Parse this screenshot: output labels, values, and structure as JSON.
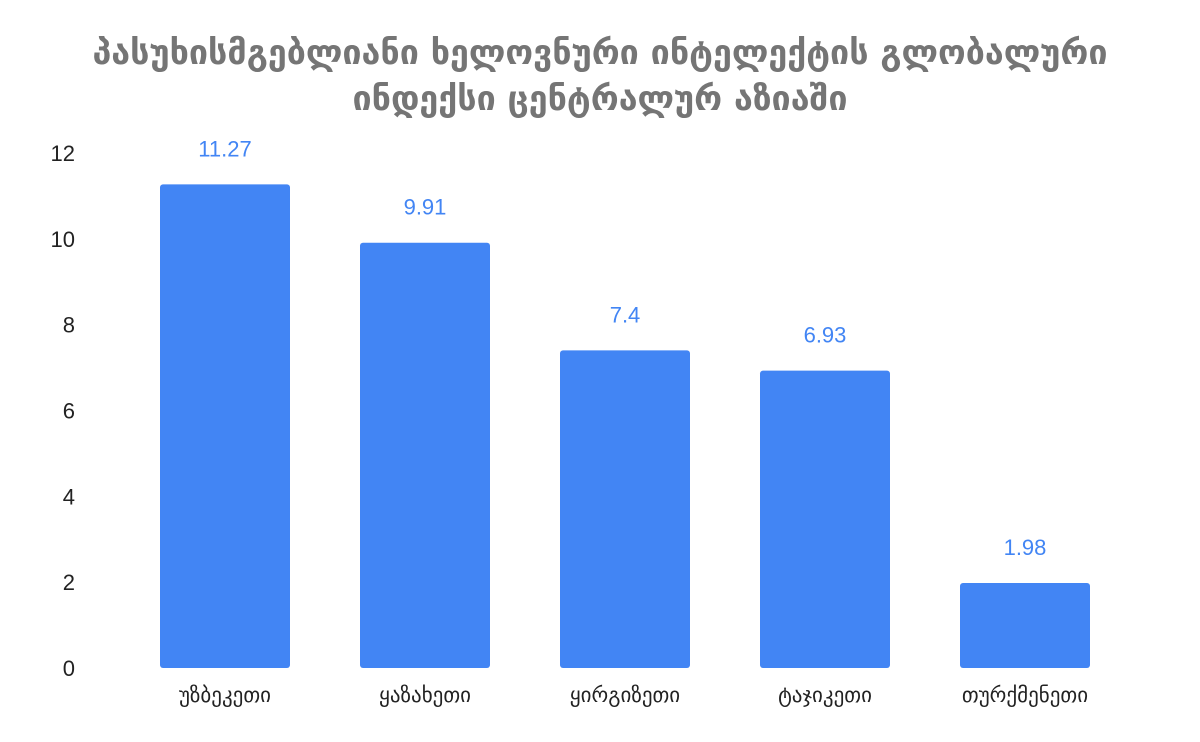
{
  "chart_data": {
    "type": "bar",
    "title_lines": [
      "პასუხისმგებლიანი ხელოვნური ინტელექტის გლობალური",
      "ინდექსი ცენტრალურ აზიაში"
    ],
    "categories": [
      "უზბეკეთი",
      "ყაზახეთი",
      "ყირგიზეთი",
      "ტაჯიკეთი",
      "თურქმენეთი"
    ],
    "values": [
      11.27,
      9.91,
      7.4,
      6.93,
      1.98
    ],
    "value_labels": [
      "11.27",
      "9.91",
      "7.4",
      "6.93",
      "1.98"
    ],
    "ylim": [
      0,
      12
    ],
    "yticks": [
      0,
      2,
      4,
      6,
      8,
      10,
      12
    ],
    "grid": false,
    "legend": "none",
    "bar_color": "#4285f4",
    "label_color": "#4285f4"
  }
}
